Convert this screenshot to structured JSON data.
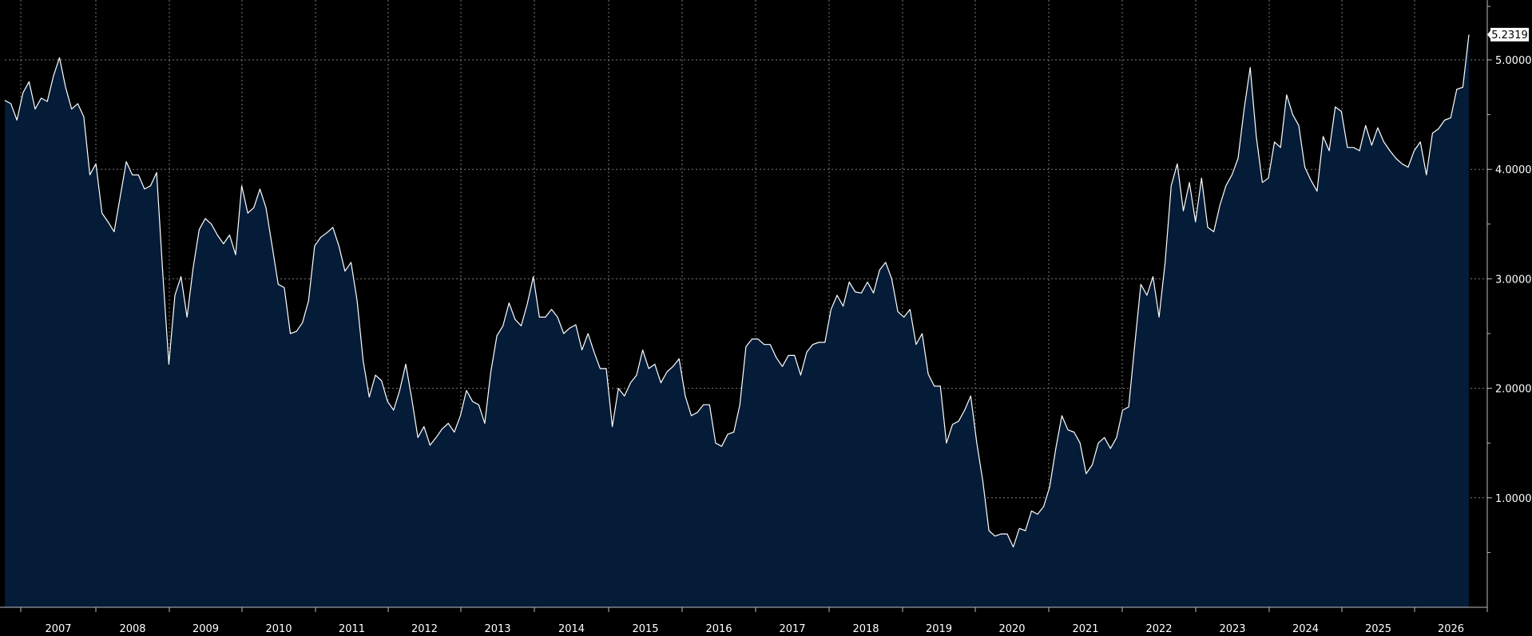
{
  "colors": {
    "background": "#000000",
    "area_fill": "#041c38",
    "line": "#ffffff",
    "grid": "#7a7a7a",
    "axis": "#bbbbbb",
    "badge_bg": "#ffffff",
    "badge_text": "#000000"
  },
  "chart_data": {
    "type": "area",
    "title": "",
    "xlabel": "",
    "ylabel": "",
    "grid": true,
    "x_range": [
      2006.25,
      2026.5
    ],
    "ylim": [
      0.0,
      5.45
    ],
    "y_ticks": [
      1.0,
      2.0,
      3.0,
      4.0,
      5.0
    ],
    "y_tick_labels": [
      "1.0000",
      "2.0000",
      "3.0000",
      "4.0000",
      "5.0000"
    ],
    "year_labels": [
      "2007",
      "2008",
      "2009",
      "2010",
      "2011",
      "2012",
      "2013",
      "2014",
      "2015",
      "2016",
      "2017",
      "2018",
      "2019",
      "2020",
      "2021",
      "2022",
      "2023",
      "2024",
      "2025",
      "2026"
    ],
    "last_value_label": "5.2319",
    "series": [
      {
        "values": [
          [
            2006.25,
            4.63
          ],
          [
            2006.33,
            4.6
          ],
          [
            2006.42,
            4.45
          ],
          [
            2006.5,
            4.7
          ],
          [
            2006.58,
            4.8
          ],
          [
            2006.67,
            4.55
          ],
          [
            2006.75,
            4.65
          ],
          [
            2006.83,
            4.62
          ],
          [
            2006.92,
            4.85
          ],
          [
            2007.0,
            5.02
          ],
          [
            2007.08,
            4.75
          ],
          [
            2007.17,
            4.55
          ],
          [
            2007.25,
            4.6
          ],
          [
            2007.33,
            4.48
          ],
          [
            2007.42,
            3.95
          ],
          [
            2007.5,
            4.05
          ],
          [
            2007.58,
            3.6
          ],
          [
            2007.67,
            3.52
          ],
          [
            2007.75,
            3.43
          ],
          [
            2007.83,
            3.75
          ],
          [
            2007.92,
            4.07
          ],
          [
            2008.0,
            3.95
          ],
          [
            2008.08,
            3.95
          ],
          [
            2008.17,
            3.82
          ],
          [
            2008.25,
            3.85
          ],
          [
            2008.33,
            3.97
          ],
          [
            2008.42,
            3.05
          ],
          [
            2008.5,
            2.22
          ],
          [
            2008.58,
            2.85
          ],
          [
            2008.67,
            3.02
          ],
          [
            2008.75,
            2.65
          ],
          [
            2008.83,
            3.1
          ],
          [
            2008.92,
            3.45
          ],
          [
            2009.0,
            3.55
          ],
          [
            2009.08,
            3.5
          ],
          [
            2009.17,
            3.4
          ],
          [
            2009.25,
            3.32
          ],
          [
            2009.33,
            3.4
          ],
          [
            2009.42,
            3.22
          ],
          [
            2009.5,
            3.85
          ],
          [
            2009.58,
            3.6
          ],
          [
            2009.67,
            3.65
          ],
          [
            2009.75,
            3.82
          ],
          [
            2009.83,
            3.65
          ],
          [
            2009.92,
            3.3
          ],
          [
            2010.0,
            2.95
          ],
          [
            2010.08,
            2.92
          ],
          [
            2010.17,
            2.5
          ],
          [
            2010.25,
            2.52
          ],
          [
            2010.33,
            2.6
          ],
          [
            2010.42,
            2.8
          ],
          [
            2010.5,
            3.3
          ],
          [
            2010.58,
            3.38
          ],
          [
            2010.67,
            3.42
          ],
          [
            2010.75,
            3.47
          ],
          [
            2010.83,
            3.3
          ],
          [
            2010.92,
            3.07
          ],
          [
            2011.0,
            3.15
          ],
          [
            2011.08,
            2.8
          ],
          [
            2011.17,
            2.25
          ],
          [
            2011.25,
            1.92
          ],
          [
            2011.33,
            2.12
          ],
          [
            2011.42,
            2.07
          ],
          [
            2011.5,
            1.88
          ],
          [
            2011.58,
            1.8
          ],
          [
            2011.67,
            1.98
          ],
          [
            2011.75,
            2.22
          ],
          [
            2011.83,
            1.9
          ],
          [
            2011.92,
            1.55
          ],
          [
            2012.0,
            1.65
          ],
          [
            2012.08,
            1.48
          ],
          [
            2012.17,
            1.55
          ],
          [
            2012.25,
            1.63
          ],
          [
            2012.33,
            1.68
          ],
          [
            2012.42,
            1.6
          ],
          [
            2012.5,
            1.75
          ],
          [
            2012.58,
            1.98
          ],
          [
            2012.67,
            1.88
          ],
          [
            2012.75,
            1.85
          ],
          [
            2012.83,
            1.68
          ],
          [
            2012.92,
            2.15
          ],
          [
            2013.0,
            2.48
          ],
          [
            2013.08,
            2.57
          ],
          [
            2013.17,
            2.78
          ],
          [
            2013.25,
            2.63
          ],
          [
            2013.33,
            2.57
          ],
          [
            2013.42,
            2.77
          ],
          [
            2013.5,
            3.02
          ],
          [
            2013.58,
            2.65
          ],
          [
            2013.67,
            2.65
          ],
          [
            2013.75,
            2.72
          ],
          [
            2013.83,
            2.65
          ],
          [
            2013.92,
            2.5
          ],
          [
            2014.0,
            2.55
          ],
          [
            2014.08,
            2.58
          ],
          [
            2014.17,
            2.35
          ],
          [
            2014.25,
            2.5
          ],
          [
            2014.33,
            2.33
          ],
          [
            2014.42,
            2.18
          ],
          [
            2014.5,
            2.18
          ],
          [
            2014.58,
            1.65
          ],
          [
            2014.67,
            2.0
          ],
          [
            2014.75,
            1.93
          ],
          [
            2014.83,
            2.05
          ],
          [
            2014.92,
            2.12
          ],
          [
            2015.0,
            2.35
          ],
          [
            2015.08,
            2.18
          ],
          [
            2015.17,
            2.22
          ],
          [
            2015.25,
            2.05
          ],
          [
            2015.33,
            2.15
          ],
          [
            2015.42,
            2.2
          ],
          [
            2015.5,
            2.27
          ],
          [
            2015.58,
            1.93
          ],
          [
            2015.67,
            1.75
          ],
          [
            2015.75,
            1.78
          ],
          [
            2015.83,
            1.85
          ],
          [
            2015.92,
            1.85
          ],
          [
            2016.0,
            1.5
          ],
          [
            2016.08,
            1.47
          ],
          [
            2016.17,
            1.58
          ],
          [
            2016.25,
            1.6
          ],
          [
            2016.33,
            1.85
          ],
          [
            2016.42,
            2.38
          ],
          [
            2016.5,
            2.45
          ],
          [
            2016.58,
            2.45
          ],
          [
            2016.67,
            2.4
          ],
          [
            2016.75,
            2.4
          ],
          [
            2016.83,
            2.28
          ],
          [
            2016.92,
            2.2
          ],
          [
            2017.0,
            2.3
          ],
          [
            2017.08,
            2.3
          ],
          [
            2017.17,
            2.12
          ],
          [
            2017.25,
            2.33
          ],
          [
            2017.33,
            2.4
          ],
          [
            2017.42,
            2.42
          ],
          [
            2017.5,
            2.42
          ],
          [
            2017.58,
            2.72
          ],
          [
            2017.67,
            2.85
          ],
          [
            2017.75,
            2.75
          ],
          [
            2017.83,
            2.97
          ],
          [
            2017.92,
            2.88
          ],
          [
            2018.0,
            2.87
          ],
          [
            2018.08,
            2.97
          ],
          [
            2018.17,
            2.87
          ],
          [
            2018.25,
            3.08
          ],
          [
            2018.33,
            3.15
          ],
          [
            2018.42,
            3.0
          ],
          [
            2018.5,
            2.7
          ],
          [
            2018.58,
            2.65
          ],
          [
            2018.67,
            2.72
          ],
          [
            2018.75,
            2.4
          ],
          [
            2018.83,
            2.5
          ],
          [
            2018.92,
            2.13
          ],
          [
            2019.0,
            2.02
          ],
          [
            2019.08,
            2.02
          ],
          [
            2019.17,
            1.5
          ],
          [
            2019.25,
            1.67
          ],
          [
            2019.33,
            1.7
          ],
          [
            2019.42,
            1.8
          ],
          [
            2019.5,
            1.93
          ],
          [
            2019.58,
            1.5
          ],
          [
            2019.67,
            1.15
          ],
          [
            2019.75,
            0.7
          ],
          [
            2019.83,
            0.65
          ],
          [
            2019.92,
            0.67
          ],
          [
            2020.0,
            0.67
          ],
          [
            2020.08,
            0.55
          ],
          [
            2020.17,
            0.72
          ],
          [
            2020.25,
            0.7
          ],
          [
            2020.33,
            0.88
          ],
          [
            2020.42,
            0.85
          ],
          [
            2020.5,
            0.92
          ],
          [
            2020.58,
            1.1
          ],
          [
            2020.67,
            1.45
          ],
          [
            2020.75,
            1.75
          ],
          [
            2020.83,
            1.62
          ],
          [
            2020.92,
            1.6
          ],
          [
            2021.0,
            1.5
          ],
          [
            2021.08,
            1.22
          ],
          [
            2021.17,
            1.3
          ],
          [
            2021.25,
            1.5
          ],
          [
            2021.33,
            1.55
          ],
          [
            2021.42,
            1.45
          ],
          [
            2021.5,
            1.55
          ],
          [
            2021.58,
            1.8
          ],
          [
            2021.67,
            1.83
          ],
          [
            2021.75,
            2.4
          ],
          [
            2021.83,
            2.95
          ],
          [
            2021.92,
            2.85
          ],
          [
            2022.0,
            3.02
          ],
          [
            2022.08,
            2.65
          ],
          [
            2022.17,
            3.15
          ],
          [
            2022.25,
            3.85
          ],
          [
            2022.33,
            4.05
          ],
          [
            2022.42,
            3.62
          ],
          [
            2022.5,
            3.88
          ],
          [
            2022.58,
            3.52
          ],
          [
            2022.67,
            3.92
          ],
          [
            2022.75,
            3.47
          ],
          [
            2022.83,
            3.43
          ],
          [
            2022.92,
            3.67
          ],
          [
            2023.0,
            3.85
          ],
          [
            2023.08,
            3.95
          ],
          [
            2023.17,
            4.1
          ],
          [
            2023.25,
            4.55
          ],
          [
            2023.33,
            4.93
          ],
          [
            2023.42,
            4.3
          ],
          [
            2023.5,
            3.88
          ],
          [
            2023.58,
            3.92
          ],
          [
            2023.67,
            4.25
          ],
          [
            2023.75,
            4.2
          ],
          [
            2023.83,
            4.68
          ],
          [
            2023.92,
            4.5
          ],
          [
            2024.0,
            4.4
          ],
          [
            2024.08,
            4.02
          ],
          [
            2024.17,
            3.9
          ],
          [
            2024.25,
            3.8
          ],
          [
            2024.33,
            4.3
          ],
          [
            2024.42,
            4.17
          ],
          [
            2024.5,
            4.57
          ],
          [
            2024.58,
            4.53
          ],
          [
            2024.67,
            4.2
          ],
          [
            2024.75,
            4.2
          ],
          [
            2024.83,
            4.17
          ],
          [
            2024.92,
            4.4
          ],
          [
            2025.0,
            4.22
          ],
          [
            2025.08,
            4.38
          ],
          [
            2025.17,
            4.25
          ],
          [
            2025.25,
            4.17
          ],
          [
            2025.33,
            4.1
          ],
          [
            2025.42,
            4.05
          ],
          [
            2025.5,
            4.02
          ],
          [
            2025.58,
            4.17
          ],
          [
            2025.67,
            4.25
          ],
          [
            2025.75,
            3.95
          ],
          [
            2025.83,
            4.33
          ],
          [
            2025.92,
            4.37
          ],
          [
            2026.0,
            4.45
          ],
          [
            2026.08,
            4.47
          ],
          [
            2026.17,
            4.73
          ],
          [
            2026.25,
            4.75
          ],
          [
            2026.33,
            5.23
          ]
        ]
      }
    ]
  }
}
